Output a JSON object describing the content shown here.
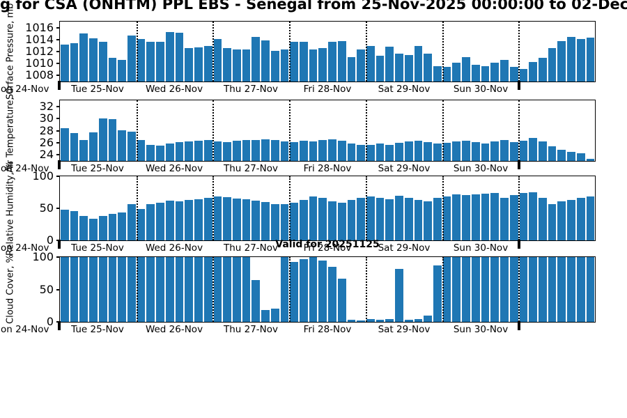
{
  "title": "g for CSA (ONHTM) PPL EBS  - Senegal from 25-Nov-2025 00:00:00 to 02-Dec",
  "valid_label": "Valid for 20251125",
  "colors": {
    "bar": "#1f77b4",
    "axis": "#000000"
  },
  "x_axis": {
    "left_label": "on 24-Nov",
    "day_labels": [
      "Tue 25-Nov",
      "Wed 26-Nov",
      "Thu 27-Nov",
      "Fri 28-Nov",
      "Sat 29-Nov",
      "Sun 30-Nov"
    ],
    "bars_per_day": 8
  },
  "chart_data": [
    {
      "type": "bar",
      "ylabel": "Surface Pressure, mb",
      "yticks": [
        1016,
        1014,
        1012,
        1010,
        1008
      ],
      "ylim": [
        1007,
        1017
      ],
      "grid": "dotted-vertical-day-boundaries",
      "values": [
        1013.2,
        1013.4,
        1015.0,
        1014.2,
        1013.6,
        1010.9,
        1010.6,
        1014.7,
        1014.1,
        1013.6,
        1013.6,
        1015.3,
        1015.1,
        1012.6,
        1012.7,
        1012.9,
        1014.1,
        1012.6,
        1012.4,
        1012.3,
        1014.4,
        1013.9,
        1012.1,
        1012.4,
        1013.6,
        1013.6,
        1012.3,
        1012.6,
        1013.6,
        1013.7,
        1011.1,
        1012.4,
        1012.9,
        1011.3,
        1012.8,
        1011.6,
        1011.4,
        1012.9,
        1011.6,
        1009.6,
        1009.4,
        1010.1,
        1011.1,
        1009.8,
        1009.6,
        1010.1,
        1010.6,
        1009.4,
        1009.1,
        1010.2,
        1010.9,
        1012.6,
        1013.7,
        1014.4,
        1014.1,
        1014.3
      ]
    },
    {
      "type": "bar",
      "ylabel": "Air Temperature, C",
      "yticks": [
        32,
        30,
        28,
        26,
        24
      ],
      "ylim": [
        23,
        33
      ],
      "grid": "dotted-vertical-day-boundaries",
      "values": [
        28.4,
        27.6,
        26.5,
        27.7,
        30.0,
        29.9,
        28.1,
        27.8,
        26.4,
        25.7,
        25.5,
        25.9,
        26.1,
        26.2,
        26.3,
        26.4,
        26.2,
        26.1,
        26.3,
        26.4,
        26.5,
        26.6,
        26.4,
        26.2,
        26.1,
        26.3,
        26.2,
        26.4,
        26.6,
        26.3,
        25.9,
        25.7,
        25.6,
        25.9,
        25.6,
        26.0,
        26.2,
        26.3,
        26.1,
        25.9,
        26.0,
        26.2,
        26.3,
        26.1,
        25.9,
        26.2,
        26.5,
        26.1,
        26.3,
        26.8,
        26.2,
        25.4,
        24.8,
        24.5,
        24.3,
        23.4
      ]
    },
    {
      "type": "bar",
      "ylabel": "Relative Humidity, %",
      "yticks": [
        100,
        50,
        0
      ],
      "ylim": [
        0,
        100
      ],
      "grid": "dotted-vertical-day-boundaries",
      "values": [
        48,
        46,
        38,
        34,
        38,
        41,
        44,
        57,
        49,
        56,
        59,
        62,
        61,
        63,
        64,
        66,
        68,
        67,
        65,
        64,
        62,
        60,
        57,
        56,
        59,
        63,
        68,
        66,
        61,
        59,
        63,
        66,
        68,
        66,
        64,
        70,
        66,
        63,
        61,
        66,
        69,
        72,
        71,
        72,
        73,
        74,
        66,
        71,
        74,
        75,
        66,
        56,
        61,
        63,
        66,
        69
      ]
    },
    {
      "type": "bar",
      "ylabel": "Cloud Cover, %",
      "yticks": [
        100,
        50,
        0
      ],
      "ylim": [
        0,
        100
      ],
      "grid": "dotted-vertical-day-boundaries",
      "values": [
        100,
        100,
        100,
        100,
        100,
        100,
        100,
        100,
        100,
        100,
        100,
        100,
        100,
        100,
        100,
        100,
        100,
        100,
        100,
        100,
        65,
        18,
        20,
        100,
        92,
        97,
        100,
        95,
        85,
        67,
        3,
        2,
        4,
        3,
        4,
        82,
        3,
        4,
        10,
        87,
        100,
        100,
        100,
        100,
        100,
        100,
        100,
        100,
        100,
        100,
        100,
        100,
        100,
        100,
        100,
        100
      ]
    }
  ]
}
